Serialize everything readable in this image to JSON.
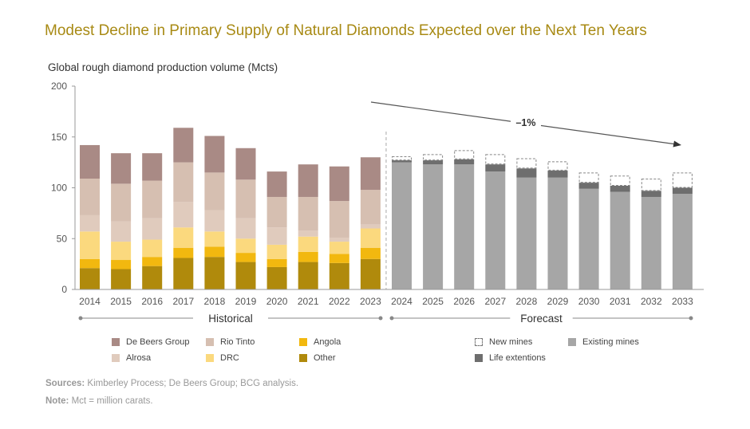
{
  "chart_data": {
    "type": "bar",
    "stacked": true,
    "title": "Modest Decline in Primary Supply of Natural Diamonds Expected over the Next Ten Years",
    "ylabel": "Global rough diamond production volume (Mcts)",
    "ylim": [
      0,
      200
    ],
    "yticks": [
      0,
      50,
      100,
      150,
      200
    ],
    "historical": {
      "label": "Historical",
      "categories": [
        "2014",
        "2015",
        "2016",
        "2017",
        "2018",
        "2019",
        "2020",
        "2021",
        "2022",
        "2023"
      ],
      "series": [
        {
          "name": "Other",
          "color": "#b08a0c",
          "values": [
            21,
            20,
            23,
            31,
            32,
            27,
            22,
            27,
            26,
            30
          ]
        },
        {
          "name": "Angola",
          "color": "#f2b80f",
          "values": [
            9,
            9,
            9,
            10,
            10,
            9,
            8,
            10,
            9,
            11
          ]
        },
        {
          "name": "DRC",
          "color": "#fbd97e",
          "values": [
            27,
            18,
            17,
            20,
            15,
            14,
            14,
            15,
            12,
            19
          ]
        },
        {
          "name": "Alrosa",
          "color": "#e0cbbd",
          "values": [
            16,
            20,
            21,
            25,
            21,
            20,
            17,
            6,
            4,
            4
          ]
        },
        {
          "name": "Rio Tinto",
          "color": "#d6bfb1",
          "values": [
            36,
            37,
            37,
            39,
            37,
            38,
            30,
            33,
            36,
            34
          ]
        },
        {
          "name": "De Beers Group",
          "color": "#a98a85",
          "values": [
            33,
            30,
            27,
            34,
            36,
            31,
            25,
            32,
            34,
            32
          ]
        }
      ]
    },
    "forecast": {
      "label": "Forecast",
      "categories": [
        "2024",
        "2025",
        "2026",
        "2027",
        "2028",
        "2029",
        "2030",
        "2031",
        "2032",
        "2033"
      ],
      "series": [
        {
          "name": "Existing mines",
          "color": "#a6a6a6",
          "values": [
            125,
            123,
            123,
            116,
            110,
            110,
            99,
            96,
            91,
            94
          ]
        },
        {
          "name": "Life extentions",
          "color": "#6e6e6e",
          "values": [
            2,
            4,
            5,
            7,
            9,
            7,
            6,
            6,
            6,
            6
          ]
        },
        {
          "name": "New mines",
          "color": "#ffffff",
          "dashed": true,
          "values": [
            4,
            6,
            9,
            10,
            10,
            9,
            10,
            10,
            12,
            15
          ]
        }
      ],
      "trend": {
        "label": "–1%"
      }
    }
  },
  "legend": {
    "historical": [
      {
        "name": "De Beers Group",
        "color": "#a98a85"
      },
      {
        "name": "Rio Tinto",
        "color": "#d6bfb1"
      },
      {
        "name": "Angola",
        "color": "#f2b80f"
      },
      {
        "name": "Alrosa",
        "color": "#e0cbbd"
      },
      {
        "name": "DRC",
        "color": "#fbd97e"
      },
      {
        "name": "Other",
        "color": "#b08a0c"
      }
    ],
    "forecast": [
      {
        "name": "New mines",
        "color": "#ffffff",
        "dashed": true
      },
      {
        "name": "Existing mines",
        "color": "#a6a6a6"
      },
      {
        "name": "Life extentions",
        "color": "#6e6e6e"
      }
    ]
  },
  "notes": {
    "sources_label": "Sources:",
    "sources_text": " Kimberley Process; De Beers Group; BCG analysis.",
    "note_label": "Note:",
    "note_text": " Mct = million carats."
  }
}
